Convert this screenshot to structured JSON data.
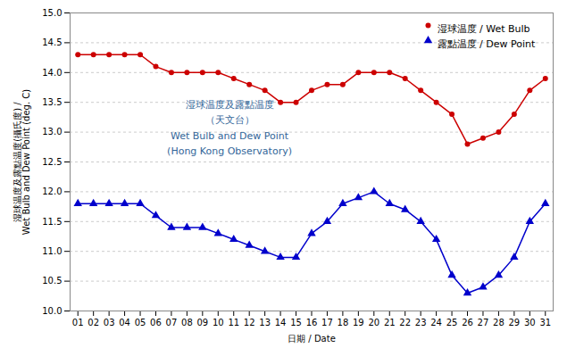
{
  "chart_data": {
    "type": "line",
    "xlabel": "日期 / Date",
    "ylabel": "湿球温度及露點温度(攝氏度) /\nWet Bulb and Dew Point (deg. C)",
    "annotation": "湿球温度及露點温度\n（天文台）\nWet Bulb and Dew Point\n(Hong Kong Observatory)",
    "x": [
      1,
      2,
      3,
      4,
      5,
      6,
      7,
      8,
      9,
      10,
      11,
      12,
      13,
      14,
      15,
      16,
      17,
      18,
      19,
      20,
      21,
      22,
      23,
      24,
      25,
      26,
      27,
      28,
      29,
      30,
      31
    ],
    "series": [
      {
        "name": "湿球温度 / Wet Bulb",
        "color": "#cc0000",
        "marker": "circle",
        "values": [
          14.3,
          14.3,
          14.3,
          14.3,
          14.3,
          14.1,
          14.0,
          14.0,
          14.0,
          14.0,
          13.9,
          13.8,
          13.7,
          13.5,
          13.5,
          13.7,
          13.8,
          13.8,
          14.0,
          14.0,
          14.0,
          13.9,
          13.7,
          13.5,
          13.3,
          12.8,
          12.9,
          13.0,
          13.3,
          13.7,
          13.9
        ]
      },
      {
        "name": "露點温度 / Dew Point",
        "color": "#0000cc",
        "marker": "triangle",
        "values": [
          11.8,
          11.8,
          11.8,
          11.8,
          11.8,
          11.6,
          11.4,
          11.4,
          11.4,
          11.3,
          11.2,
          11.1,
          11.0,
          10.9,
          10.9,
          11.3,
          11.5,
          11.8,
          11.9,
          12.0,
          11.8,
          11.7,
          11.5,
          11.2,
          10.6,
          10.3,
          10.4,
          10.6,
          10.9,
          11.5,
          11.8
        ]
      }
    ],
    "xlim": [
      0.5,
      31.5
    ],
    "xticks": [
      {
        "value": 1,
        "label": "01"
      },
      {
        "value": 2,
        "label": "02"
      },
      {
        "value": 3,
        "label": "03"
      },
      {
        "value": 4,
        "label": "04"
      },
      {
        "value": 5,
        "label": "05"
      },
      {
        "value": 6,
        "label": "06"
      },
      {
        "value": 7,
        "label": "07"
      },
      {
        "value": 8,
        "label": "08"
      },
      {
        "value": 9,
        "label": "09"
      },
      10,
      11,
      12,
      13,
      14,
      15,
      16,
      17,
      18,
      19,
      20,
      21,
      22,
      23,
      24,
      25,
      26,
      27,
      28,
      29,
      30,
      31
    ],
    "ylim": [
      10.0,
      15.0
    ],
    "yticks": [
      {
        "value": 10,
        "label": "10.0"
      },
      10.5,
      {
        "value": 11,
        "label": "11.0"
      },
      11.5,
      {
        "value": 12,
        "label": "12.0"
      },
      12.5,
      {
        "value": 13,
        "label": "13.0"
      },
      13.5,
      {
        "value": 14,
        "label": "14.0"
      },
      14.5,
      {
        "value": 15,
        "label": "15.0"
      }
    ],
    "grid": true,
    "legend": "upper right"
  }
}
